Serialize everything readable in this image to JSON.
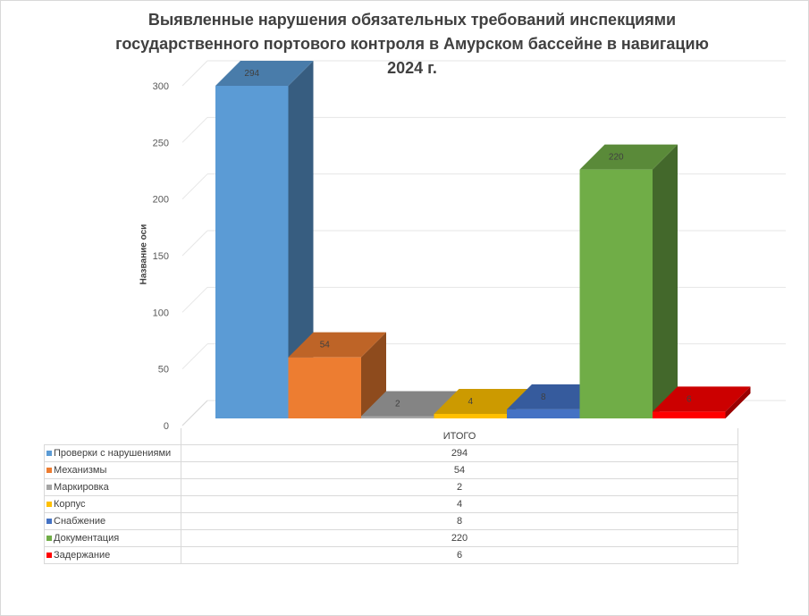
{
  "chart_data": {
    "type": "bar",
    "title": "Выявленные нарушения обязательных требований инспекциями государственного портового контроля в Амурском бассейне в навигацию 2024 г.",
    "title_lines": [
      "Выявленные нарушения обязательных требований инспекциями",
      "государственного портового контроля в Амурском бассейне в навигацию",
      "2024 г."
    ],
    "ylabel": "Название оси",
    "xlabel": "",
    "categories": [
      "ИТОГО"
    ],
    "ylim": [
      0,
      300
    ],
    "yticks": [
      "0",
      "50",
      "100",
      "150",
      "200",
      "250",
      "300"
    ],
    "grid": true,
    "series": [
      {
        "name": "Проверки с нарушениями",
        "values": [
          294
        ],
        "color": "#5b9bd5"
      },
      {
        "name": "Механизмы",
        "values": [
          54
        ],
        "color": "#ed7d31"
      },
      {
        "name": "Маркировка",
        "values": [
          2
        ],
        "color": "#a5a5a5"
      },
      {
        "name": "Корпус",
        "values": [
          4
        ],
        "color": "#ffc000"
      },
      {
        "name": "Снабжение",
        "values": [
          8
        ],
        "color": "#4472c4"
      },
      {
        "name": "Документация",
        "values": [
          220
        ],
        "color": "#70ad47"
      },
      {
        "name": "Задержание",
        "values": [
          6
        ],
        "color": "#ff0000"
      }
    ]
  }
}
